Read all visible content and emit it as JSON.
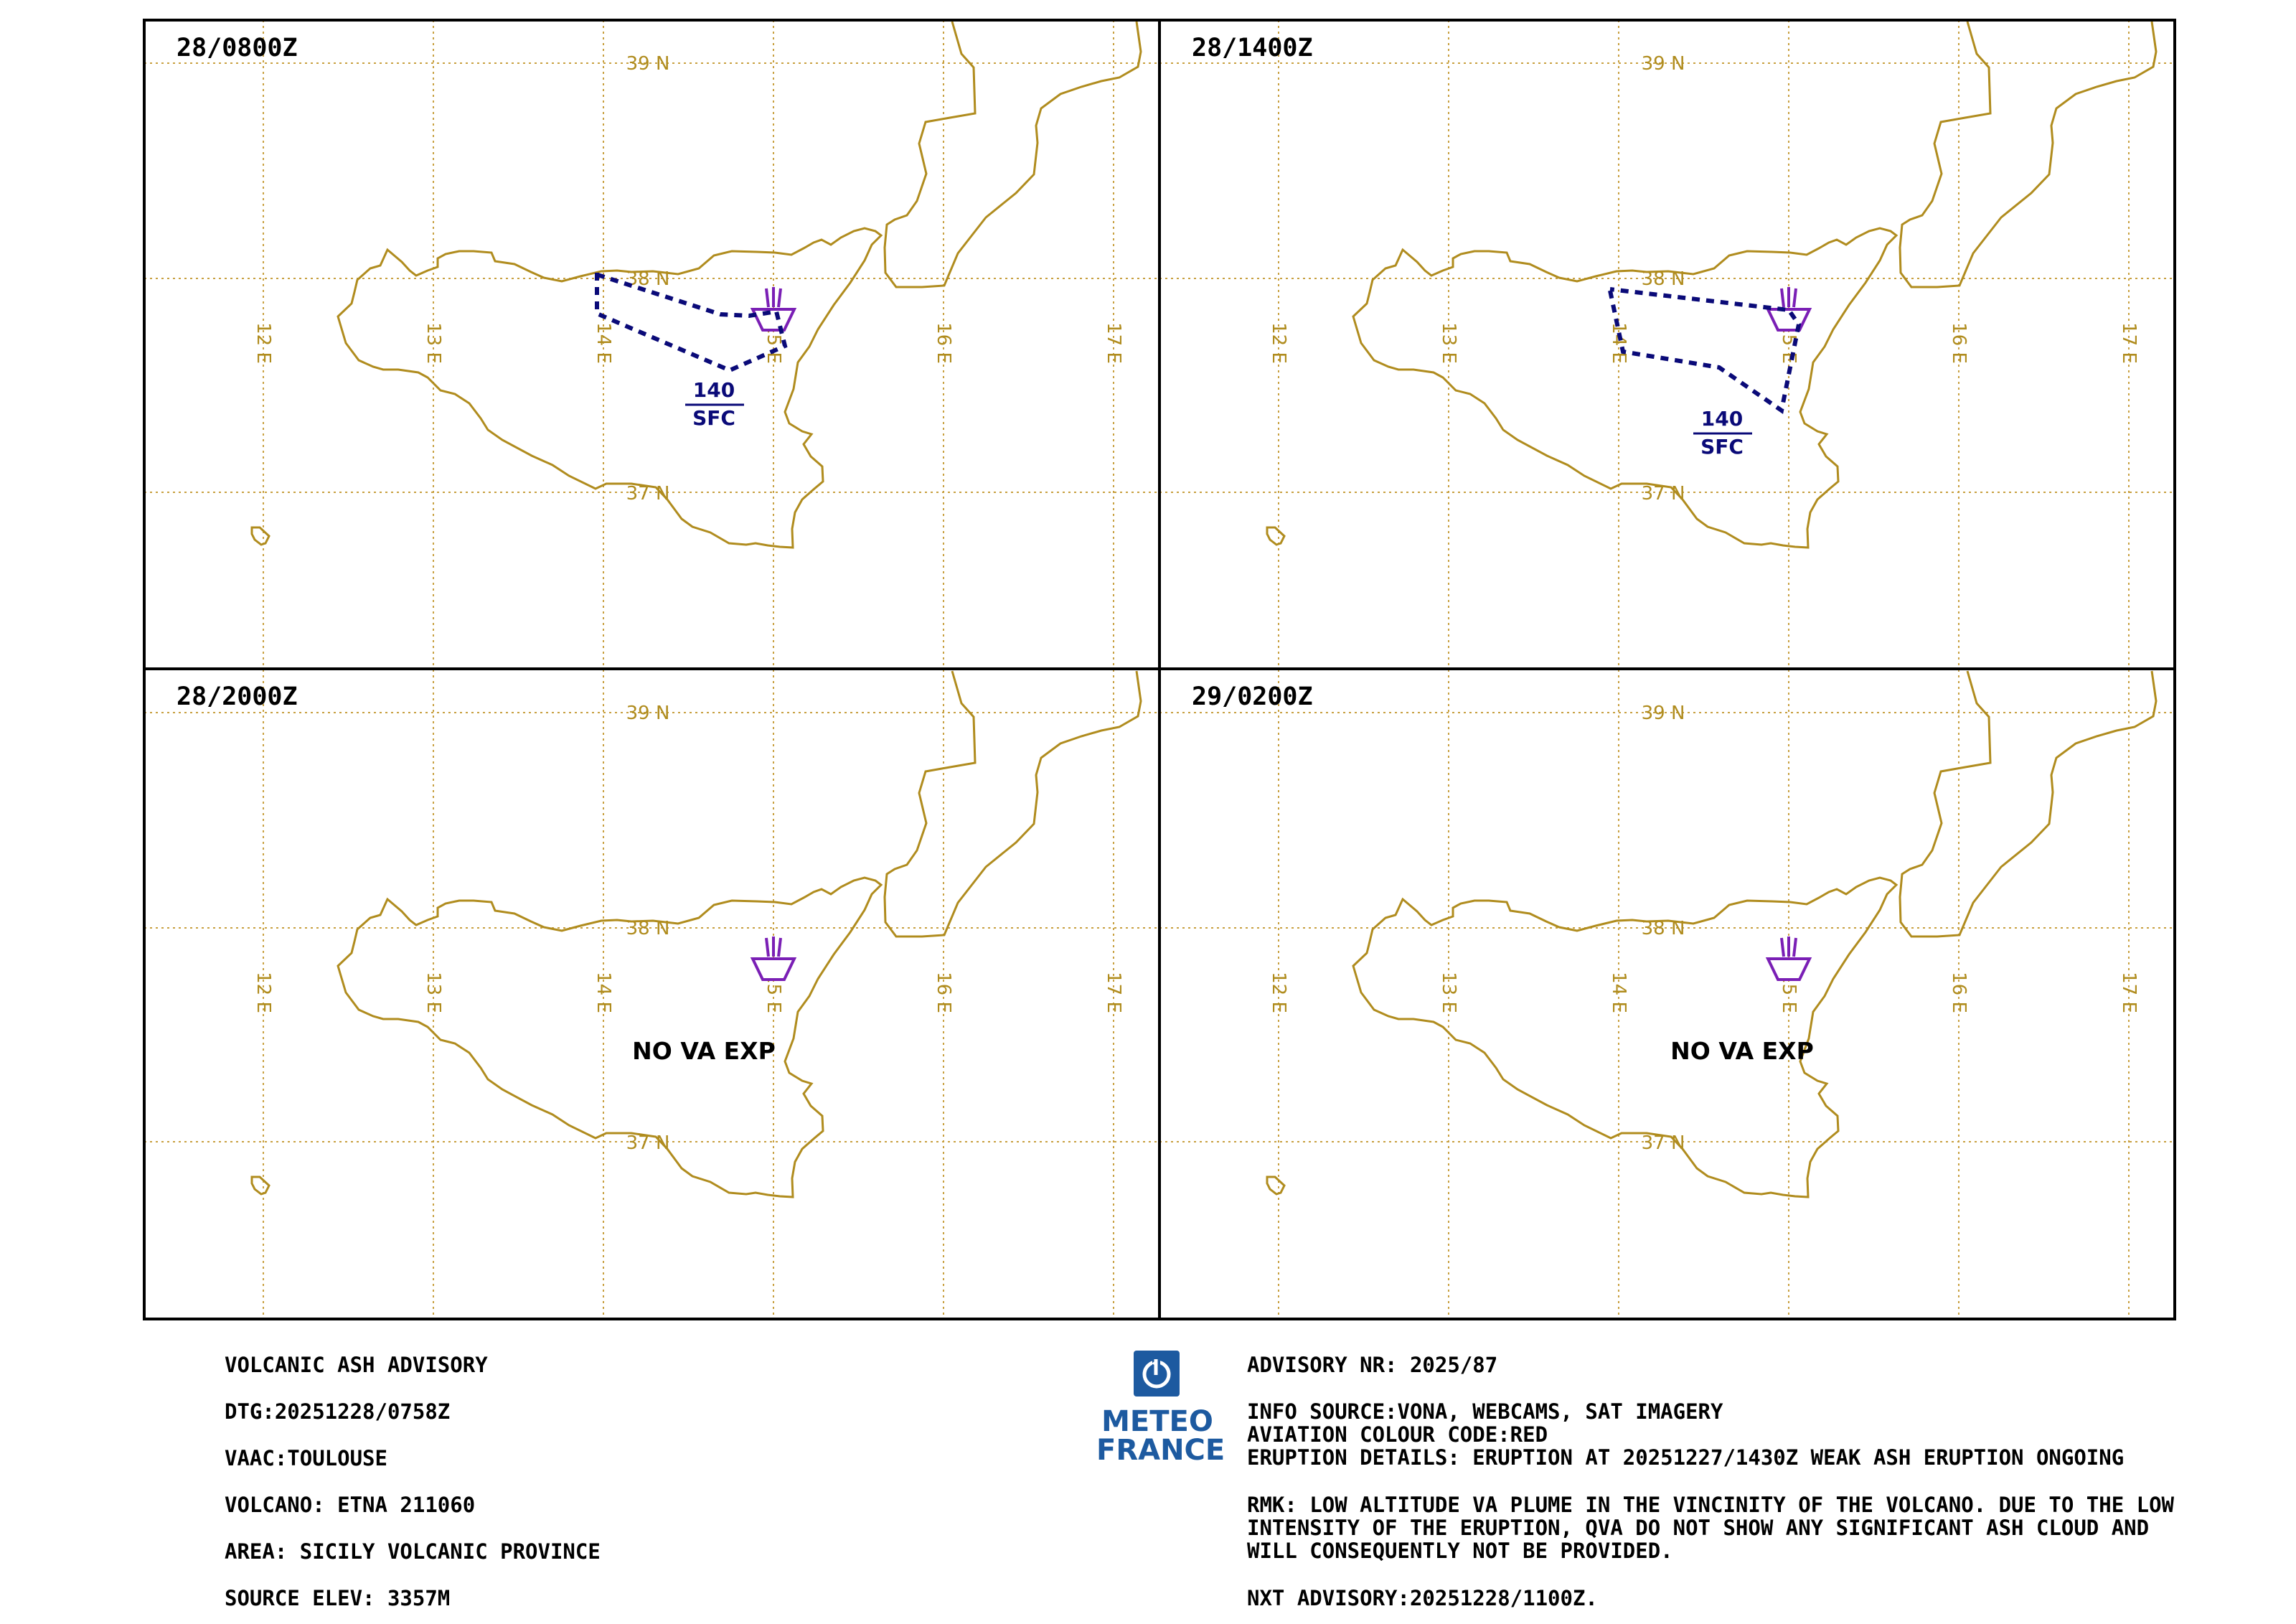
{
  "panels": [
    {
      "time": "28/0800Z",
      "flight_level": {
        "top": "140",
        "bottom": "SFC"
      },
      "label": ""
    },
    {
      "time": "28/1400Z",
      "flight_level": {
        "top": "140",
        "bottom": "SFC"
      },
      "label": ""
    },
    {
      "time": "28/2000Z",
      "flight_level": null,
      "label": "NO VA EXP"
    },
    {
      "time": "29/0200Z",
      "flight_level": null,
      "label": "NO VA EXP"
    }
  ],
  "grid": {
    "lat_labels": [
      "39 N",
      "38 N",
      "37 N"
    ],
    "lon_labels": [
      "12 E",
      "13 E",
      "14 E",
      "15 E",
      "16 E",
      "17 E"
    ]
  },
  "colors": {
    "coastline": "#b08c1e",
    "grid": "#c8a040",
    "ash_polygon": "#0a0a78",
    "volcano": "#7a1fb5",
    "brand": "#1d5aa0"
  },
  "advisory_left": [
    "VOLCANIC ASH ADVISORY",
    "DTG:20251228/0758Z",
    "VAAC:TOULOUSE",
    "VOLCANO: ETNA 211060",
    "AREA: SICILY VOLCANIC PROVINCE",
    "SOURCE ELEV: 3357M"
  ],
  "advisory_right": {
    "nr": "ADVISORY NR: 2025/87",
    "info_source": "INFO SOURCE:VONA, WEBCAMS, SAT IMAGERY",
    "colour_code": "AVIATION COLOUR CODE:RED",
    "eruption": "ERUPTION DETAILS: ERUPTION AT 20251227/1430Z WEAK ASH ERUPTION ONGOING",
    "rmk_1": "RMK: LOW ALTITUDE VA PLUME IN THE VINCINITY OF THE VOLCANO. DUE TO THE LOW",
    "rmk_2": "INTENSITY OF THE ERUPTION, QVA DO NOT SHOW ANY SIGNIFICANT ASH CLOUD AND",
    "rmk_3": "WILL CONSEQUENTLY NOT BE PROVIDED.",
    "next": "NXT ADVISORY:20251228/1100Z."
  },
  "logo": {
    "line1": "METEO",
    "line2": "FRANCE"
  }
}
